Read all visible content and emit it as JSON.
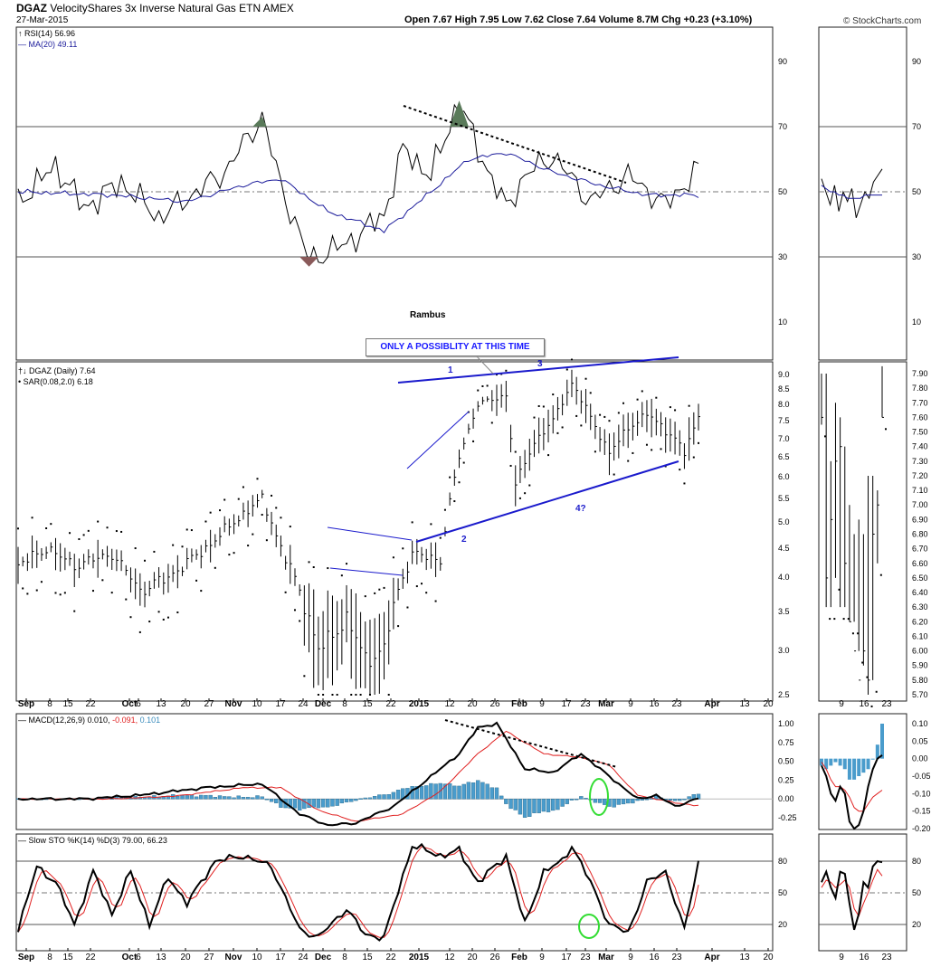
{
  "header": {
    "symbol": "DGAZ",
    "name": "VelocityShares 3x Inverse Natural Gas ETN AMEX",
    "date": "27-Mar-2015",
    "ohlc": "Open 7.67  High 7.95  Low 7.62  Close 7.64  Volume 8.7M  Chg +0.23 (+3.10%)",
    "credit": "© StockCharts.com"
  },
  "rsi_panel": {
    "label": "RSI(14) 56.96",
    "ma_label": "MA(20) 49.11",
    "author": "Rambus",
    "ticks": [
      90,
      70,
      50,
      30,
      10
    ]
  },
  "price_panel": {
    "label": "DGAZ (Daily) 7.64",
    "sar_label": "SAR(0.08,2.0) 6.18",
    "note": "ONLY A POSSIBLITY AT THIS TIME",
    "wave_labels": [
      "1",
      "2",
      "3",
      "4?"
    ],
    "ticks": [
      9.0,
      8.5,
      8.0,
      7.5,
      7.0,
      6.5,
      6.0,
      5.5,
      5.0,
      4.5,
      4.0,
      3.5,
      3.0,
      2.5
    ],
    "tick_text": [
      "9.0",
      "8.5",
      "8.0",
      "7.5",
      "7.0",
      "6.5",
      "6.0",
      "5.5",
      "5.0",
      "4.5",
      "4.0",
      "3.5",
      "3.0",
      "2.5"
    ],
    "zoom_ticks": [
      "7.90",
      "7.80",
      "7.70",
      "7.60",
      "7.50",
      "7.40",
      "7.30",
      "7.20",
      "7.10",
      "7.00",
      "6.90",
      "6.80",
      "6.70",
      "6.60",
      "6.50",
      "6.40",
      "6.30",
      "6.20",
      "6.10",
      "6.00",
      "5.90",
      "5.80",
      "5.70"
    ]
  },
  "macd_panel": {
    "label": "MACD(12,26,9) 0.010,",
    "signal_value": "-0.091,",
    "hist_value": "0.101",
    "ticks": [
      "1.00",
      "0.75",
      "0.50",
      "0.25",
      "0.00",
      "-0.25"
    ],
    "zoom_ticks": [
      "0.10",
      "0.05",
      "0.00",
      "-0.05",
      "-0.10",
      "-0.15",
      "-0.20"
    ]
  },
  "sto_panel": {
    "label": "Slow STO %K(14) %D(3) 79.00, 66.23",
    "ticks": [
      "80",
      "50",
      "20"
    ]
  },
  "x_axis": {
    "labels": [
      "Sep",
      "8",
      "15",
      "22",
      "Oct",
      "6",
      "13",
      "20",
      "27",
      "Nov",
      "10",
      "17",
      "24",
      "Dec",
      "8",
      "15",
      "22",
      "2015",
      "12",
      "20",
      "26",
      "Feb",
      "9",
      "17",
      "23",
      "Mar",
      "9",
      "16",
      "23",
      "Apr",
      "13",
      "20"
    ],
    "zoom_labels": [
      "9",
      "16",
      "23"
    ]
  },
  "colors": {
    "rsi_line": "#000000",
    "ma_line": "#1a1a9a",
    "trendline": "#1a1acc",
    "macd_line": "#000000",
    "signal_line": "#e02020",
    "histogram": "#4a9ccc",
    "sto_k": "#000000",
    "sto_d": "#e02020",
    "highlight_circle": "#33dd33"
  },
  "chart_data": [
    {
      "type": "line",
      "title": "RSI(14)",
      "ylim": [
        0,
        100
      ],
      "x": [
        "Sep",
        "Oct",
        "Nov",
        "Dec",
        "2015",
        "Feb",
        "Mar"
      ],
      "series": [
        {
          "name": "RSI(14)",
          "values": [
            47,
            50,
            59,
            39,
            62,
            57,
            56.96
          ]
        },
        {
          "name": "MA(20)",
          "values": [
            50,
            49,
            57,
            40,
            60,
            54,
            49.11
          ]
        }
      ]
    },
    {
      "type": "scatter",
      "title": "DGAZ (Daily)",
      "ylim": [
        2.5,
        9.0
      ],
      "x": [
        "Sep",
        "Oct",
        "Nov",
        "Dec",
        "2015",
        "Feb",
        "Mar"
      ],
      "series": [
        {
          "name": "DGAZ (Daily)",
          "values": [
            4.3,
            4.2,
            5.2,
            3.0,
            7.5,
            7.8,
            7.64
          ]
        }
      ]
    },
    {
      "type": "line",
      "title": "MACD(12,26,9)",
      "ylim": [
        -0.35,
        1.05
      ],
      "x": [
        "Sep",
        "Oct",
        "Nov",
        "Dec",
        "2015",
        "Feb",
        "Mar"
      ],
      "series": [
        {
          "name": "MACD",
          "values": [
            0.0,
            0.05,
            0.35,
            -0.3,
            0.5,
            0.55,
            0.01
          ]
        },
        {
          "name": "Signal",
          "values": [
            0.0,
            0.02,
            0.25,
            -0.2,
            0.3,
            0.55,
            -0.091
          ]
        }
      ]
    },
    {
      "type": "line",
      "title": "Slow STO",
      "ylim": [
        0,
        100
      ],
      "x": [
        "Sep",
        "Oct",
        "Nov",
        "Dec",
        "2015",
        "Feb",
        "Mar"
      ],
      "series": [
        {
          "name": "%K(14)",
          "values": [
            15,
            60,
            85,
            15,
            80,
            90,
            79
          ]
        },
        {
          "name": "%D(3)",
          "values": [
            20,
            55,
            80,
            20,
            78,
            88,
            66.23
          ]
        }
      ]
    }
  ]
}
